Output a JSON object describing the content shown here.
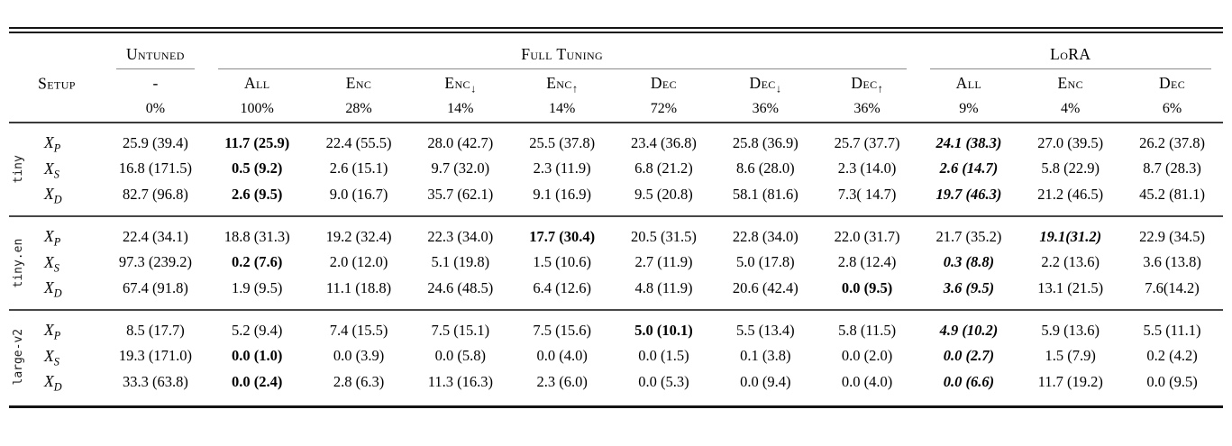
{
  "table": {
    "setup_label": "Setup",
    "col_groups": [
      {
        "label": "Untuned",
        "span": 1
      },
      {
        "label": "Full Tuning",
        "span": 7
      },
      {
        "label": "LoRA",
        "span": 3
      }
    ],
    "columns": [
      {
        "name": "-",
        "smallcaps": false,
        "arrow": "",
        "pct": "0%"
      },
      {
        "name": "All",
        "smallcaps": true,
        "arrow": "",
        "pct": "100%"
      },
      {
        "name": "Enc",
        "smallcaps": true,
        "arrow": "",
        "pct": "28%"
      },
      {
        "name": "Enc",
        "smallcaps": true,
        "arrow": "↓",
        "pct": "14%"
      },
      {
        "name": "Enc",
        "smallcaps": true,
        "arrow": "↑",
        "pct": "14%"
      },
      {
        "name": "Dec",
        "smallcaps": true,
        "arrow": "",
        "pct": "72%"
      },
      {
        "name": "Dec",
        "smallcaps": true,
        "arrow": "↓",
        "pct": "36%"
      },
      {
        "name": "Dec",
        "smallcaps": true,
        "arrow": "↑",
        "pct": "36%"
      },
      {
        "name": "All",
        "smallcaps": true,
        "arrow": "",
        "pct": "9%"
      },
      {
        "name": "Enc",
        "smallcaps": true,
        "arrow": "",
        "pct": "4%"
      },
      {
        "name": "Dec",
        "smallcaps": true,
        "arrow": "",
        "pct": "6%"
      }
    ],
    "groups": [
      {
        "name": "tiny",
        "rows": [
          {
            "label": "X",
            "sub": "P",
            "cells": [
              {
                "t": "25.9 (39.4)",
                "s": "n"
              },
              {
                "t": "11.7 (25.9)",
                "s": "b"
              },
              {
                "t": "22.4 (55.5)",
                "s": "n"
              },
              {
                "t": "28.0 (42.7)",
                "s": "n"
              },
              {
                "t": "25.5 (37.8)",
                "s": "n"
              },
              {
                "t": "23.4 (36.8)",
                "s": "n"
              },
              {
                "t": "25.8 (36.9)",
                "s": "n"
              },
              {
                "t": "25.7 (37.7)",
                "s": "n"
              },
              {
                "t": "24.1 (38.3)",
                "s": "bi"
              },
              {
                "t": "27.0 (39.5)",
                "s": "n"
              },
              {
                "t": "26.2 (37.8)",
                "s": "n"
              }
            ]
          },
          {
            "label": "X",
            "sub": "S",
            "cells": [
              {
                "t": "16.8 (171.5)",
                "s": "n"
              },
              {
                "t": "0.5 (9.2)",
                "s": "b"
              },
              {
                "t": "2.6 (15.1)",
                "s": "n"
              },
              {
                "t": "9.7 (32.0)",
                "s": "n"
              },
              {
                "t": "2.3 (11.9)",
                "s": "n"
              },
              {
                "t": "6.8 (21.2)",
                "s": "n"
              },
              {
                "t": "8.6 (28.0)",
                "s": "n"
              },
              {
                "t": "2.3 (14.0)",
                "s": "n"
              },
              {
                "t": "2.6 (14.7)",
                "s": "bi"
              },
              {
                "t": "5.8 (22.9)",
                "s": "n"
              },
              {
                "t": "8.7 (28.3)",
                "s": "n"
              }
            ]
          },
          {
            "label": "X",
            "sub": "D",
            "cells": [
              {
                "t": "82.7 (96.8)",
                "s": "n"
              },
              {
                "t": "2.6 (9.5)",
                "s": "b"
              },
              {
                "t": "9.0 (16.7)",
                "s": "n"
              },
              {
                "t": "35.7 (62.1)",
                "s": "n"
              },
              {
                "t": "9.1 (16.9)",
                "s": "n"
              },
              {
                "t": "9.5 (20.8)",
                "s": "n"
              },
              {
                "t": "58.1 (81.6)",
                "s": "n"
              },
              {
                "t": "7.3( 14.7)",
                "s": "n"
              },
              {
                "t": "19.7 (46.3)",
                "s": "bi"
              },
              {
                "t": "21.2 (46.5)",
                "s": "n"
              },
              {
                "t": "45.2 (81.1)",
                "s": "n"
              }
            ]
          }
        ]
      },
      {
        "name": "tiny.en",
        "rows": [
          {
            "label": "X",
            "sub": "P",
            "cells": [
              {
                "t": "22.4 (34.1)",
                "s": "n"
              },
              {
                "t": "18.8 (31.3)",
                "s": "n"
              },
              {
                "t": "19.2 (32.4)",
                "s": "n"
              },
              {
                "t": "22.3 (34.0)",
                "s": "n"
              },
              {
                "t": "17.7 (30.4)",
                "s": "b"
              },
              {
                "t": "20.5 (31.5)",
                "s": "n"
              },
              {
                "t": "22.8 (34.0)",
                "s": "n"
              },
              {
                "t": "22.0 (31.7)",
                "s": "n"
              },
              {
                "t": "21.7 (35.2)",
                "s": "n"
              },
              {
                "t": "19.1(31.2)",
                "s": "bi"
              },
              {
                "t": "22.9 (34.5)",
                "s": "n"
              }
            ]
          },
          {
            "label": "X",
            "sub": "S",
            "cells": [
              {
                "t": "97.3 (239.2)",
                "s": "n"
              },
              {
                "t": "0.2 (7.6)",
                "s": "b"
              },
              {
                "t": "2.0 (12.0)",
                "s": "n"
              },
              {
                "t": "5.1 (19.8)",
                "s": "n"
              },
              {
                "t": "1.5 (10.6)",
                "s": "n"
              },
              {
                "t": "2.7 (11.9)",
                "s": "n"
              },
              {
                "t": "5.0 (17.8)",
                "s": "n"
              },
              {
                "t": "2.8 (12.4)",
                "s": "n"
              },
              {
                "t": "0.3 (8.8)",
                "s": "bi"
              },
              {
                "t": "2.2 (13.6)",
                "s": "n"
              },
              {
                "t": "3.6 (13.8)",
                "s": "n"
              }
            ]
          },
          {
            "label": "X",
            "sub": "D",
            "cells": [
              {
                "t": "67.4 (91.8)",
                "s": "n"
              },
              {
                "t": "1.9 (9.5)",
                "s": "n"
              },
              {
                "t": "11.1 (18.8)",
                "s": "n"
              },
              {
                "t": "24.6 (48.5)",
                "s": "n"
              },
              {
                "t": "6.4 (12.6)",
                "s": "n"
              },
              {
                "t": "4.8 (11.9)",
                "s": "n"
              },
              {
                "t": "20.6 (42.4)",
                "s": "n"
              },
              {
                "t": "0.0 (9.5)",
                "s": "b"
              },
              {
                "t": "3.6 (9.5)",
                "s": "bi"
              },
              {
                "t": "13.1 (21.5)",
                "s": "n"
              },
              {
                "t": "7.6(14.2)",
                "s": "n"
              }
            ]
          }
        ]
      },
      {
        "name": "large-v2",
        "rows": [
          {
            "label": "X",
            "sub": "P",
            "cells": [
              {
                "t": "8.5 (17.7)",
                "s": "n"
              },
              {
                "t": "5.2 (9.4)",
                "s": "n"
              },
              {
                "t": "7.4 (15.5)",
                "s": "n"
              },
              {
                "t": "7.5 (15.1)",
                "s": "n"
              },
              {
                "t": "7.5 (15.6)",
                "s": "n"
              },
              {
                "t": "5.0 (10.1)",
                "s": "b"
              },
              {
                "t": "5.5 (13.4)",
                "s": "n"
              },
              {
                "t": "5.8 (11.5)",
                "s": "n"
              },
              {
                "t": "4.9 (10.2)",
                "s": "bi"
              },
              {
                "t": "5.9 (13.6)",
                "s": "n"
              },
              {
                "t": "5.5 (11.1)",
                "s": "n"
              }
            ]
          },
          {
            "label": "X",
            "sub": "S",
            "cells": [
              {
                "t": "19.3 (171.0)",
                "s": "n"
              },
              {
                "t": "0.0 (1.0)",
                "s": "b"
              },
              {
                "t": "0.0 (3.9)",
                "s": "n"
              },
              {
                "t": "0.0 (5.8)",
                "s": "n"
              },
              {
                "t": "0.0 (4.0)",
                "s": "n"
              },
              {
                "t": "0.0 (1.5)",
                "s": "n"
              },
              {
                "t": "0.1 (3.8)",
                "s": "n"
              },
              {
                "t": "0.0 (2.0)",
                "s": "n"
              },
              {
                "t": "0.0 (2.7)",
                "s": "bi"
              },
              {
                "t": "1.5 (7.9)",
                "s": "n"
              },
              {
                "t": "0.2 (4.2)",
                "s": "n"
              }
            ]
          },
          {
            "label": "X",
            "sub": "D",
            "cells": [
              {
                "t": "33.3 (63.8)",
                "s": "n"
              },
              {
                "t": "0.0 (2.4)",
                "s": "b"
              },
              {
                "t": "2.8 (6.3)",
                "s": "n"
              },
              {
                "t": "11.3 (16.3)",
                "s": "n"
              },
              {
                "t": "2.3 (6.0)",
                "s": "n"
              },
              {
                "t": "0.0 (5.3)",
                "s": "n"
              },
              {
                "t": "0.0 (9.4)",
                "s": "n"
              },
              {
                "t": "0.0 (4.0)",
                "s": "n"
              },
              {
                "t": "0.0 (6.6)",
                "s": "bi"
              },
              {
                "t": "11.7 (19.2)",
                "s": "n"
              },
              {
                "t": "0.0 (9.5)",
                "s": "n"
              }
            ]
          }
        ]
      }
    ]
  }
}
